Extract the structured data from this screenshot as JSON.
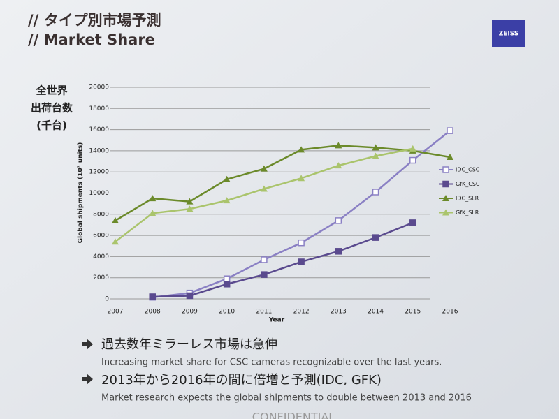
{
  "slide": {
    "heading_jp": "// タイプ別市場予測",
    "heading_en": "// Market Share",
    "logo": "ZEISS",
    "unit_lines": [
      "全世界",
      "出荷台数",
      "(千台)"
    ],
    "bullets": [
      {
        "main": "過去数年ミラーレス市場は急伸",
        "sub": "Increasing market share for CSC cameras recognizable over the last years."
      },
      {
        "main": "2013年から2016年の間に倍増と予測(IDC, GFK)",
        "sub": "Market research expects the global shipments to double between 2013 and 2016"
      }
    ],
    "footer": "CONFIDENTIAL"
  },
  "chart_data": {
    "type": "line",
    "x_label": "Year",
    "y_label": "Global shipments (10³ units)",
    "categories": [
      "2007",
      "2008",
      "2009",
      "2010",
      "2011",
      "2012",
      "2013",
      "2014",
      "2015",
      "2016"
    ],
    "series": [
      {
        "name": "IDC_CSC",
        "color": "#8a80c4",
        "marker": "square-open",
        "values": [
          null,
          150,
          550,
          1900,
          3700,
          5300,
          7400,
          10100,
          13100,
          15900
        ]
      },
      {
        "name": "GfK_CSC",
        "color": "#5a4a8e",
        "marker": "square",
        "values": [
          null,
          200,
          300,
          1400,
          2300,
          3500,
          4500,
          5800,
          7200,
          null
        ]
      },
      {
        "name": "IDC_SLR",
        "color": "#6b8a2a",
        "marker": "triangle",
        "values": [
          7400,
          9500,
          9200,
          11300,
          12300,
          14100,
          14500,
          14300,
          14000,
          13400
        ]
      },
      {
        "name": "GfK_SLR",
        "color": "#aac46c",
        "marker": "triangle",
        "values": [
          5400,
          8100,
          8500,
          9300,
          10400,
          11400,
          12600,
          13500,
          14200,
          null
        ]
      }
    ],
    "ylim": [
      0,
      20000
    ],
    "yticks": [
      0,
      2000,
      4000,
      6000,
      8000,
      10000,
      12000,
      14000,
      16000,
      18000,
      20000
    ],
    "grid": true,
    "legend": "right"
  }
}
